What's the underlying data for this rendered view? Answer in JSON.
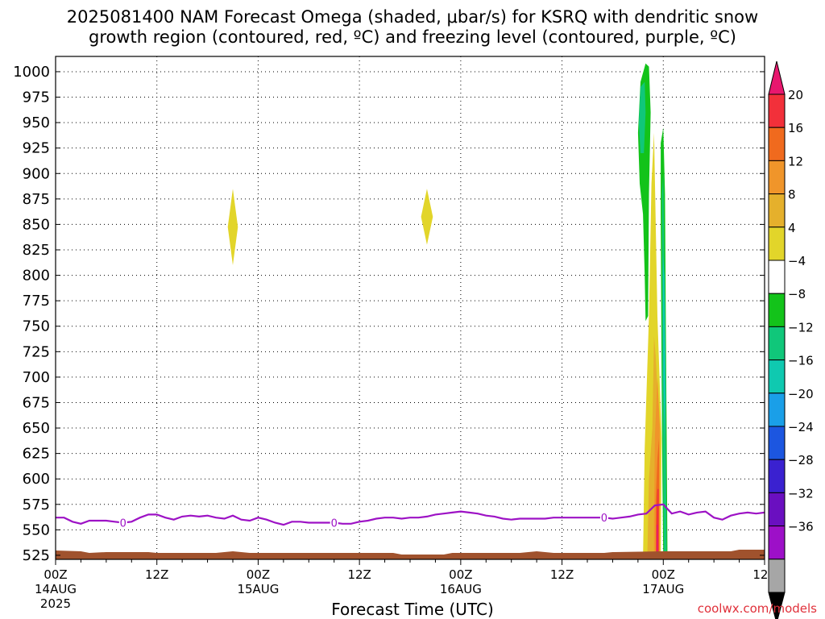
{
  "title_line1": "2025081400 NAM Forecast Omega (shaded, μbar/s) for KSRQ with dendritic snow",
  "title_line2": "growth region (contoured, red, ºC) and freezing level (contoured, purple, ºC)",
  "xlabel": "Forecast Time (UTC)",
  "credit": "coolwx.com/models",
  "chart_data": {
    "type": "heatmap",
    "title": "2025081400 NAM Forecast Omega (shaded, μbar/s) for KSRQ with dendritic snow growth region (contoured, red, ºC) and freezing level (contoured, purple, ºC)",
    "xlabel": "Forecast Time (UTC)",
    "ylabel": "",
    "y_axis": {
      "ticks": [
        525,
        550,
        575,
        600,
        625,
        650,
        675,
        700,
        725,
        750,
        775,
        800,
        825,
        850,
        875,
        900,
        925,
        950,
        975,
        1000
      ],
      "range": [
        1015,
        521
      ],
      "inverted": true
    },
    "x_axis": {
      "range_hours": [
        0,
        84
      ],
      "ticks": [
        {
          "hour": 0,
          "label": "00Z",
          "sub": "14AUG",
          "year": "2025"
        },
        {
          "hour": 12,
          "label": "12Z",
          "sub": "",
          "year": ""
        },
        {
          "hour": 24,
          "label": "00Z",
          "sub": "15AUG",
          "year": ""
        },
        {
          "hour": 36,
          "label": "12Z",
          "sub": "",
          "year": ""
        },
        {
          "hour": 48,
          "label": "00Z",
          "sub": "16AUG",
          "year": ""
        },
        {
          "hour": 60,
          "label": "12Z",
          "sub": "",
          "year": ""
        },
        {
          "hour": 72,
          "label": "00Z",
          "sub": "17AUG",
          "year": ""
        },
        {
          "hour": 84,
          "label": "12Z",
          "sub": "",
          "year": ""
        }
      ]
    },
    "grid": true,
    "colorbar": {
      "labels": [
        "20",
        "16",
        "12",
        "8",
        "4",
        "−4",
        "−8",
        "−12",
        "−16",
        "−20",
        "−24",
        "−28",
        "−32",
        "−36"
      ],
      "colors": [
        "#e8176e",
        "#f2303a",
        "#f06a1e",
        "#f0952a",
        "#e5b02c",
        "#e2d52a",
        "#ffffff",
        "#13c31a",
        "#10c77a",
        "#0fc9b0",
        "#1a9fe8",
        "#1c56e0",
        "#3a21d0",
        "#6a0fc0",
        "#9d10c8",
        "#a6a6a6",
        "#000000"
      ]
    },
    "freezing_level": {
      "label": "0",
      "color": "#9d12c5",
      "points": [
        [
          0,
          562
        ],
        [
          1,
          562
        ],
        [
          2,
          558
        ],
        [
          3,
          556
        ],
        [
          4,
          559
        ],
        [
          5,
          559
        ],
        [
          6,
          559
        ],
        [
          7,
          558
        ],
        [
          8,
          557
        ],
        [
          9,
          558
        ],
        [
          10,
          562
        ],
        [
          11,
          565
        ],
        [
          12,
          565
        ],
        [
          13,
          562
        ],
        [
          14,
          560
        ],
        [
          15,
          563
        ],
        [
          16,
          564
        ],
        [
          17,
          563
        ],
        [
          18,
          564
        ],
        [
          19,
          562
        ],
        [
          20,
          561
        ],
        [
          21,
          564
        ],
        [
          22,
          560
        ],
        [
          23,
          559
        ],
        [
          24,
          562
        ],
        [
          25,
          560
        ],
        [
          26,
          557
        ],
        [
          27,
          555
        ],
        [
          28,
          558
        ],
        [
          29,
          558
        ],
        [
          30,
          557
        ],
        [
          31,
          557
        ],
        [
          32,
          557
        ],
        [
          33,
          557
        ],
        [
          34,
          556
        ],
        [
          35,
          556
        ],
        [
          36,
          558
        ],
        [
          37,
          559
        ],
        [
          38,
          561
        ],
        [
          39,
          562
        ],
        [
          40,
          562
        ],
        [
          41,
          561
        ],
        [
          42,
          562
        ],
        [
          43,
          562
        ],
        [
          44,
          563
        ],
        [
          45,
          565
        ],
        [
          46,
          566
        ],
        [
          47,
          567
        ],
        [
          48,
          568
        ],
        [
          49,
          567
        ],
        [
          50,
          566
        ],
        [
          51,
          564
        ],
        [
          52,
          563
        ],
        [
          53,
          561
        ],
        [
          54,
          560
        ],
        [
          55,
          561
        ],
        [
          56,
          561
        ],
        [
          57,
          561
        ],
        [
          58,
          561
        ],
        [
          59,
          562
        ],
        [
          60,
          562
        ],
        [
          61,
          562
        ],
        [
          62,
          562
        ],
        [
          63,
          562
        ],
        [
          64,
          562
        ],
        [
          65,
          562
        ],
        [
          66,
          561
        ],
        [
          67,
          562
        ],
        [
          68,
          563
        ],
        [
          69,
          565
        ],
        [
          70,
          566
        ],
        [
          71,
          574
        ],
        [
          72,
          575
        ],
        [
          73,
          566
        ],
        [
          74,
          568
        ],
        [
          75,
          565
        ],
        [
          76,
          567
        ],
        [
          77,
          568
        ],
        [
          78,
          562
        ],
        [
          79,
          560
        ],
        [
          80,
          564
        ],
        [
          81,
          566
        ],
        [
          82,
          567
        ],
        [
          83,
          566
        ],
        [
          84,
          567
        ]
      ]
    },
    "omega_features": [
      {
        "name": "omega-blob-15aug",
        "color": "#e2d52a",
        "center_hour": 21,
        "p_top": 810,
        "p_bottom": 885,
        "half_width_hours": 0.6
      },
      {
        "name": "omega-blob-16aug",
        "color": "#e2d52a",
        "center_hour": 44,
        "p_top": 830,
        "p_bottom": 885,
        "half_width_hours": 0.7
      }
    ],
    "terrain_color": "#a0522d"
  }
}
